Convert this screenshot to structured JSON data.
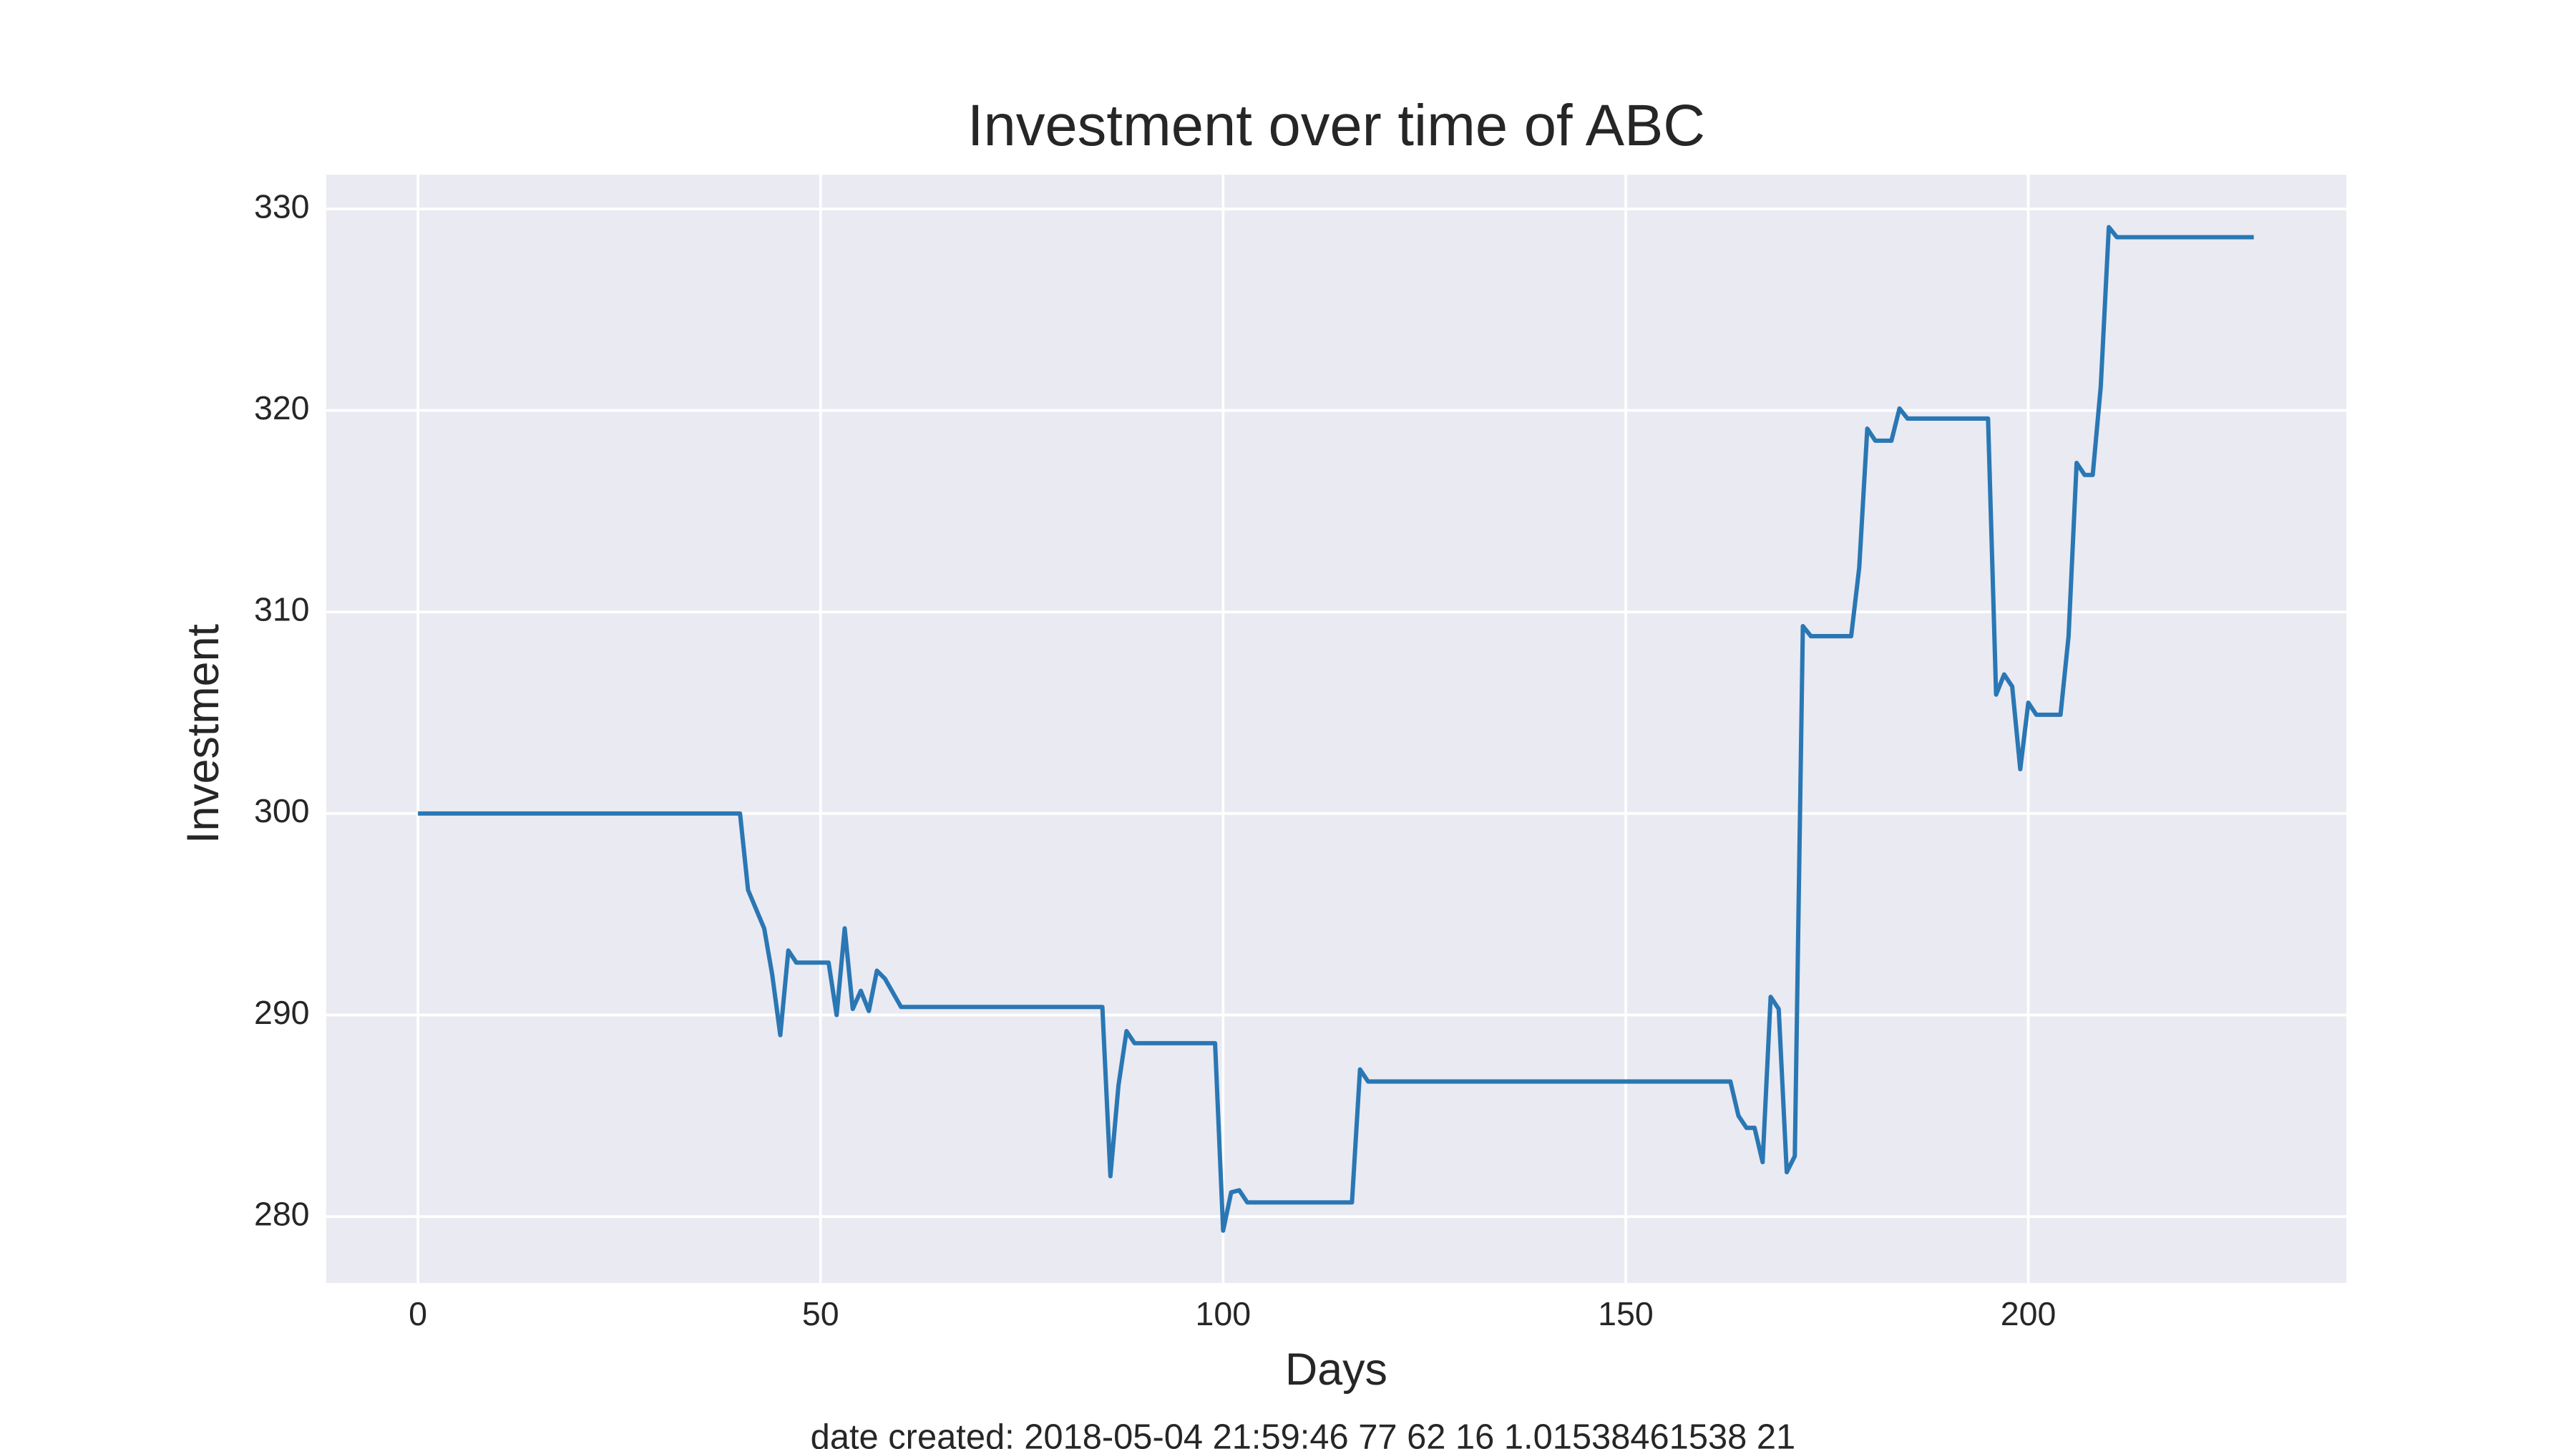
{
  "chart_data": {
    "type": "line",
    "title": "Investment over time of ABC",
    "x_label": "Days",
    "y_label": "Investment",
    "footnote": "date created: 2018-05-04 21:59:46 77 62 16 1.01538461538 21",
    "x": [
      0,
      40,
      41,
      43,
      44,
      45,
      46,
      47,
      51,
      52,
      53,
      54,
      55,
      56,
      57,
      58,
      60,
      85,
      86,
      87,
      88,
      89,
      99,
      100,
      101,
      102,
      103,
      116,
      117,
      118,
      163,
      164,
      165,
      166,
      167,
      168,
      169,
      170,
      171,
      172,
      173,
      178,
      179,
      180,
      181,
      183,
      184,
      185,
      195,
      196,
      197,
      198,
      199,
      200,
      201,
      204,
      205,
      206,
      207,
      208,
      209,
      210,
      211,
      228
    ],
    "series": [
      {
        "name": "Investment",
        "color": "#2a77b4",
        "values": [
          300,
          300,
          296.2,
          294.3,
          292,
          289,
          293.2,
          292.6,
          292.6,
          290,
          294.3,
          290.3,
          291.2,
          290.2,
          292.2,
          291.8,
          290.4,
          290.4,
          282,
          286.5,
          289.2,
          288.6,
          288.6,
          279.3,
          281.2,
          281.3,
          280.7,
          280.7,
          287.3,
          286.7,
          286.7,
          285,
          284.4,
          284.4,
          282.7,
          290.9,
          290.3,
          282.2,
          283,
          309.3,
          308.8,
          308.8,
          312.2,
          319.1,
          318.5,
          318.5,
          320.1,
          319.6,
          319.6,
          305.9,
          306.9,
          306.3,
          302.2,
          305.5,
          304.9,
          304.9,
          308.8,
          317.4,
          316.8,
          316.8,
          321.2,
          329.1,
          328.6,
          328.6
        ]
      }
    ],
    "xlim": [
      -11.4,
      239.5
    ],
    "ylim": [
      276.7,
      331.7
    ],
    "xticks": [
      0,
      50,
      100,
      150,
      200
    ],
    "yticks": [
      280,
      290,
      300,
      310,
      320,
      330
    ],
    "grid": true,
    "background": "#eaeaf2",
    "grid_color": "#ffffff"
  }
}
